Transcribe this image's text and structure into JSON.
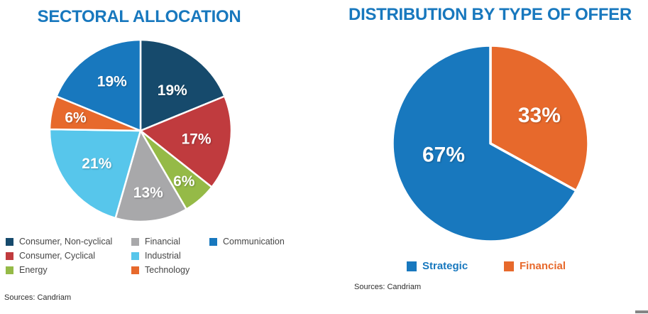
{
  "brand": {
    "title_color": "#1878be",
    "white": "#ffffff"
  },
  "chart_data": [
    {
      "type": "pie",
      "title": "SECTORAL ALLOCATION",
      "source": "Sources: Candriam",
      "start_angle_deg": 0,
      "direction": "clockwise",
      "legend_position": "bottom",
      "slices": [
        {
          "label": "Consumer, Non-cyclical",
          "value": 19,
          "pct_label": "19%",
          "color": "#164a6c"
        },
        {
          "label": "Consumer, Cyclical",
          "value": 17,
          "pct_label": "17%",
          "color": "#c03b3e"
        },
        {
          "label": "Energy",
          "value": 6,
          "pct_label": "6%",
          "color": "#95ba47"
        },
        {
          "label": "Financial",
          "value": 13,
          "pct_label": "13%",
          "color": "#a8a8aa"
        },
        {
          "label": "Industrial",
          "value": 21,
          "pct_label": "21%",
          "color": "#57c6eb"
        },
        {
          "label": "Technology",
          "value": 6,
          "pct_label": "6%",
          "color": "#e7692c"
        },
        {
          "label": "Communication",
          "value": 19,
          "pct_label": "19%",
          "color": "#1878be"
        }
      ],
      "legend_columns": [
        [
          0,
          1,
          2
        ],
        [
          3,
          4,
          5
        ],
        [
          6
        ]
      ]
    },
    {
      "type": "pie",
      "title": "DISTRIBUTION BY TYPE OF OFFER",
      "source": "Sources: Candriam",
      "start_angle_deg": 0,
      "direction": "clockwise",
      "legend_position": "bottom",
      "slices": [
        {
          "label": "Financial",
          "value": 33,
          "pct_label": "33%",
          "color": "#e7692c"
        },
        {
          "label": "Strategic",
          "value": 67,
          "pct_label": "67%",
          "color": "#1878be"
        }
      ],
      "legend_order": [
        1,
        0
      ]
    }
  ]
}
